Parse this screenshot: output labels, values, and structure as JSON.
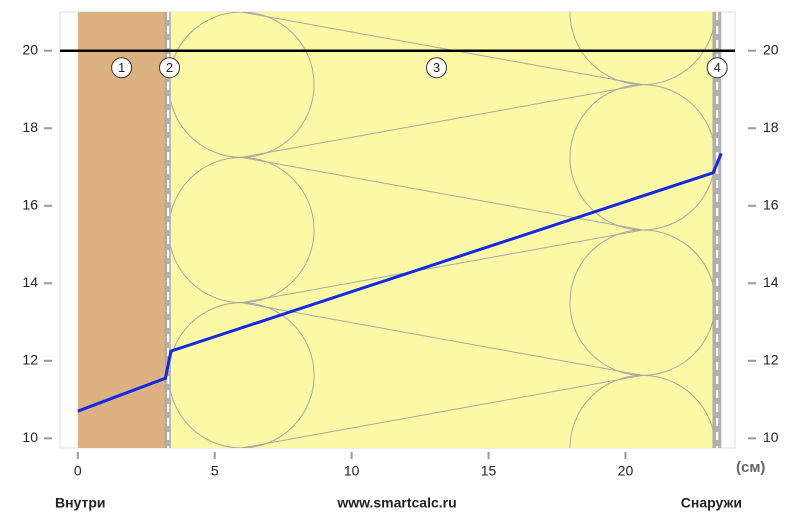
{
  "chart_data": {
    "type": "line",
    "x_label": "(см)",
    "left_label": "Внутри",
    "center_label": "www.smartcalc.ru",
    "right_label": "Снаружи",
    "xlim": [
      -0.65,
      24.0
    ],
    "ylim": [
      9.75,
      21.0
    ],
    "xticks": [
      0,
      5,
      10,
      15,
      20
    ],
    "yticks": [
      10,
      12,
      14,
      16,
      18,
      20
    ],
    "reference_line": 20,
    "layers": [
      {
        "label": "1",
        "x": [
          0,
          3.2
        ],
        "color": "#dcb280",
        "label_x": 1.6
      },
      {
        "label": "2",
        "x": [
          3.2,
          3.4
        ],
        "color": "#b0b0b0",
        "label_x": 3.35
      },
      {
        "label": "3",
        "x": [
          3.4,
          23.2
        ],
        "color": "#fbf9a6",
        "label_x": 13.1
      },
      {
        "label": "4",
        "x": [
          23.2,
          23.5
        ],
        "color": "#b0b0b0",
        "label_x": 23.35
      }
    ],
    "series": [
      {
        "color": "#1428e6",
        "x": [
          0,
          1.5,
          3.2,
          3.4,
          23.2,
          23.5
        ],
        "values": [
          10.7,
          11.1,
          11.55,
          12.25,
          16.85,
          17.35
        ]
      }
    ]
  }
}
